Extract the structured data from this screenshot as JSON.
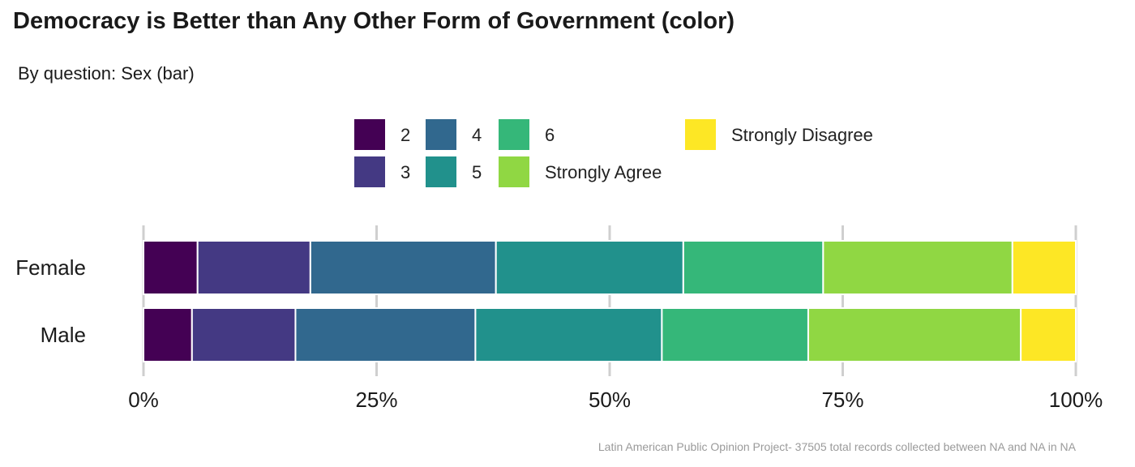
{
  "chart_data": {
    "type": "bar",
    "orientation": "horizontal",
    "stacked": true,
    "title": "Democracy is Better than Any Other Form of Government (color)",
    "subtitle": "By question: Sex (bar)",
    "caption": "Latin American Public Opinion Project- 37505 total records collected between NA and NA in  NA",
    "categories": [
      "Female",
      "Male"
    ],
    "series": [
      {
        "name": "2",
        "color": "#440154",
        "values": [
          5.8,
          5.2
        ]
      },
      {
        "name": "3",
        "color": "#443983",
        "values": [
          12.1,
          11.1
        ]
      },
      {
        "name": "4",
        "color": "#31688E",
        "values": [
          19.9,
          19.3
        ]
      },
      {
        "name": "5",
        "color": "#21918C",
        "values": [
          20.1,
          20.0
        ]
      },
      {
        "name": "6",
        "color": "#35B779",
        "values": [
          15.0,
          15.7
        ]
      },
      {
        "name": "Strongly Agree",
        "color": "#90D743",
        "values": [
          20.3,
          22.8
        ]
      },
      {
        "name": "Strongly Disagree",
        "color": "#FDE725",
        "values": [
          6.8,
          5.9
        ]
      }
    ],
    "xlim": [
      0,
      100
    ],
    "x_ticks": [
      "0%",
      "25%",
      "50%",
      "75%",
      "100%"
    ],
    "x_tick_values": [
      0,
      25,
      50,
      75,
      100
    ],
    "legend_position": "top"
  }
}
